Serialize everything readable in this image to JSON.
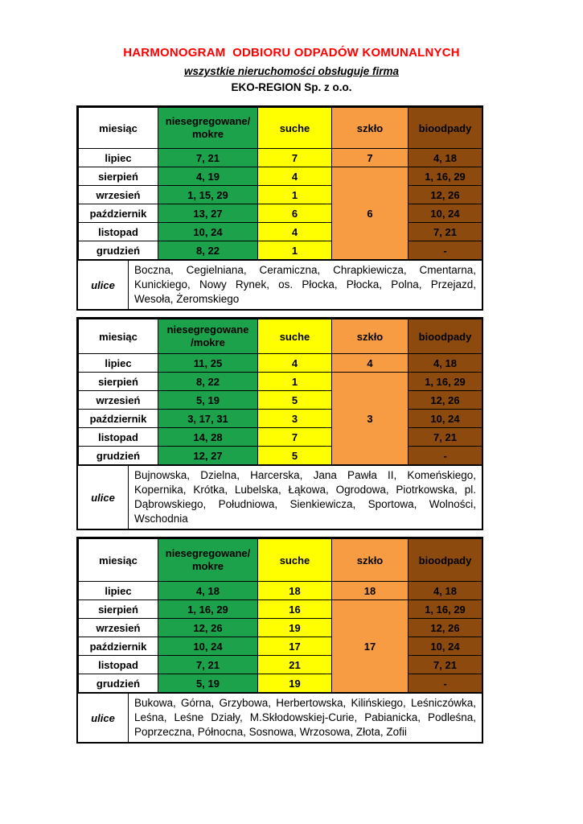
{
  "header": {
    "title": "HARMONOGRAM  ODBIORU ODPADÓW KOMUNALNYCH",
    "subtitle": "wszystkie nieruchomości obsługuje firma",
    "company": "EKO-REGION Sp. z o.o."
  },
  "columns": {
    "month": "miesiąc",
    "dry": "suche",
    "glass": "szkło",
    "bio": "bioodpady"
  },
  "streets_label": "ulice",
  "colors": {
    "title": "#ff0000",
    "mixed_green": "#1ca24b",
    "dry_yellow": "#ffff00",
    "glass_orange": "#f79c42",
    "bio_brown": "#8c4a0f",
    "text": "#000000"
  },
  "tables": [
    {
      "mixed_header_lines": [
        "niesegregowane/",
        "mokre"
      ],
      "rows": [
        {
          "month": "lipiec",
          "mixed": "7, 21",
          "dry": "7",
          "glass": "7",
          "bio": "4, 18"
        },
        {
          "month": "sierpień",
          "mixed": "4, 19",
          "dry": "4",
          "bio": "1, 16, 29"
        },
        {
          "month": "wrzesień",
          "mixed": "1, 15, 29",
          "dry": "1",
          "bio": "12, 26"
        },
        {
          "month": "październik",
          "mixed": "13, 27",
          "dry": "6",
          "bio": "10, 24"
        },
        {
          "month": "listopad",
          "mixed": "10, 24",
          "dry": "4",
          "bio": "7, 21"
        },
        {
          "month": "grudzień",
          "mixed": "8, 22",
          "dry": "1",
          "bio": "-"
        }
      ],
      "glass_merged": "6",
      "streets": "Boczna, Cegielniana, Ceramiczna, Chrapkiewicza, Cmentarna, Kunickiego, Nowy Rynek, os. Płocka, Płocka, Polna, Przejazd, Wesoła, Żeromskiego"
    },
    {
      "mixed_header_lines": [
        "niesegregowane",
        "/mokre"
      ],
      "rows": [
        {
          "month": "lipiec",
          "mixed": "11, 25",
          "dry": "4",
          "glass": "4",
          "bio": "4, 18"
        },
        {
          "month": "sierpień",
          "mixed": "8, 22",
          "dry": "1",
          "bio": "1, 16, 29"
        },
        {
          "month": "wrzesień",
          "mixed": "5, 19",
          "dry": "5",
          "bio": "12, 26"
        },
        {
          "month": "październik",
          "mixed": "3, 17, 31",
          "dry": "3",
          "bio": "10, 24"
        },
        {
          "month": "listopad",
          "mixed": "14, 28",
          "dry": "7",
          "bio": "7, 21"
        },
        {
          "month": "grudzień",
          "mixed": "12, 27",
          "dry": "5",
          "bio": "-"
        }
      ],
      "glass_merged": "3",
      "streets": "Bujnowska, Dzielna, Harcerska, Jana Pawła II, Komeńskiego, Kopernika, Krótka, Lubelska, Łąkowa, Ogrodowa, Piotrkowska, pl. Dąbrowskiego, Południowa, Sienkiewicza, Sportowa, Wolności, Wschodnia"
    },
    {
      "mixed_header_lines": [
        "niesegregowane/",
        "mokre"
      ],
      "rows": [
        {
          "month": "lipiec",
          "mixed": "4, 18",
          "dry": "18",
          "glass": "18",
          "bio": "4, 18"
        },
        {
          "month": "sierpień",
          "mixed": "1, 16, 29",
          "dry": "16",
          "bio": "1, 16, 29"
        },
        {
          "month": "wrzesień",
          "mixed": "12, 26",
          "dry": "19",
          "bio": "12, 26"
        },
        {
          "month": "październik",
          "mixed": "10, 24",
          "dry": "17",
          "bio": "10, 24"
        },
        {
          "month": "listopad",
          "mixed": "7, 21",
          "dry": "21",
          "bio": "7, 21"
        },
        {
          "month": "grudzień",
          "mixed": "5, 19",
          "dry": "19",
          "bio": "-"
        }
      ],
      "glass_merged": "17",
      "streets": "Bukowa, Górna, Grzybowa,  Herbertowska, Kilińskiego, Leśniczówka, Leśna, Leśne Działy,  M.Skłodowskiej-Curie, Pabianicka, Podleśna, Poprzeczna, Północna, Sosnowa, Wrzosowa, Złota, Zofii"
    }
  ]
}
